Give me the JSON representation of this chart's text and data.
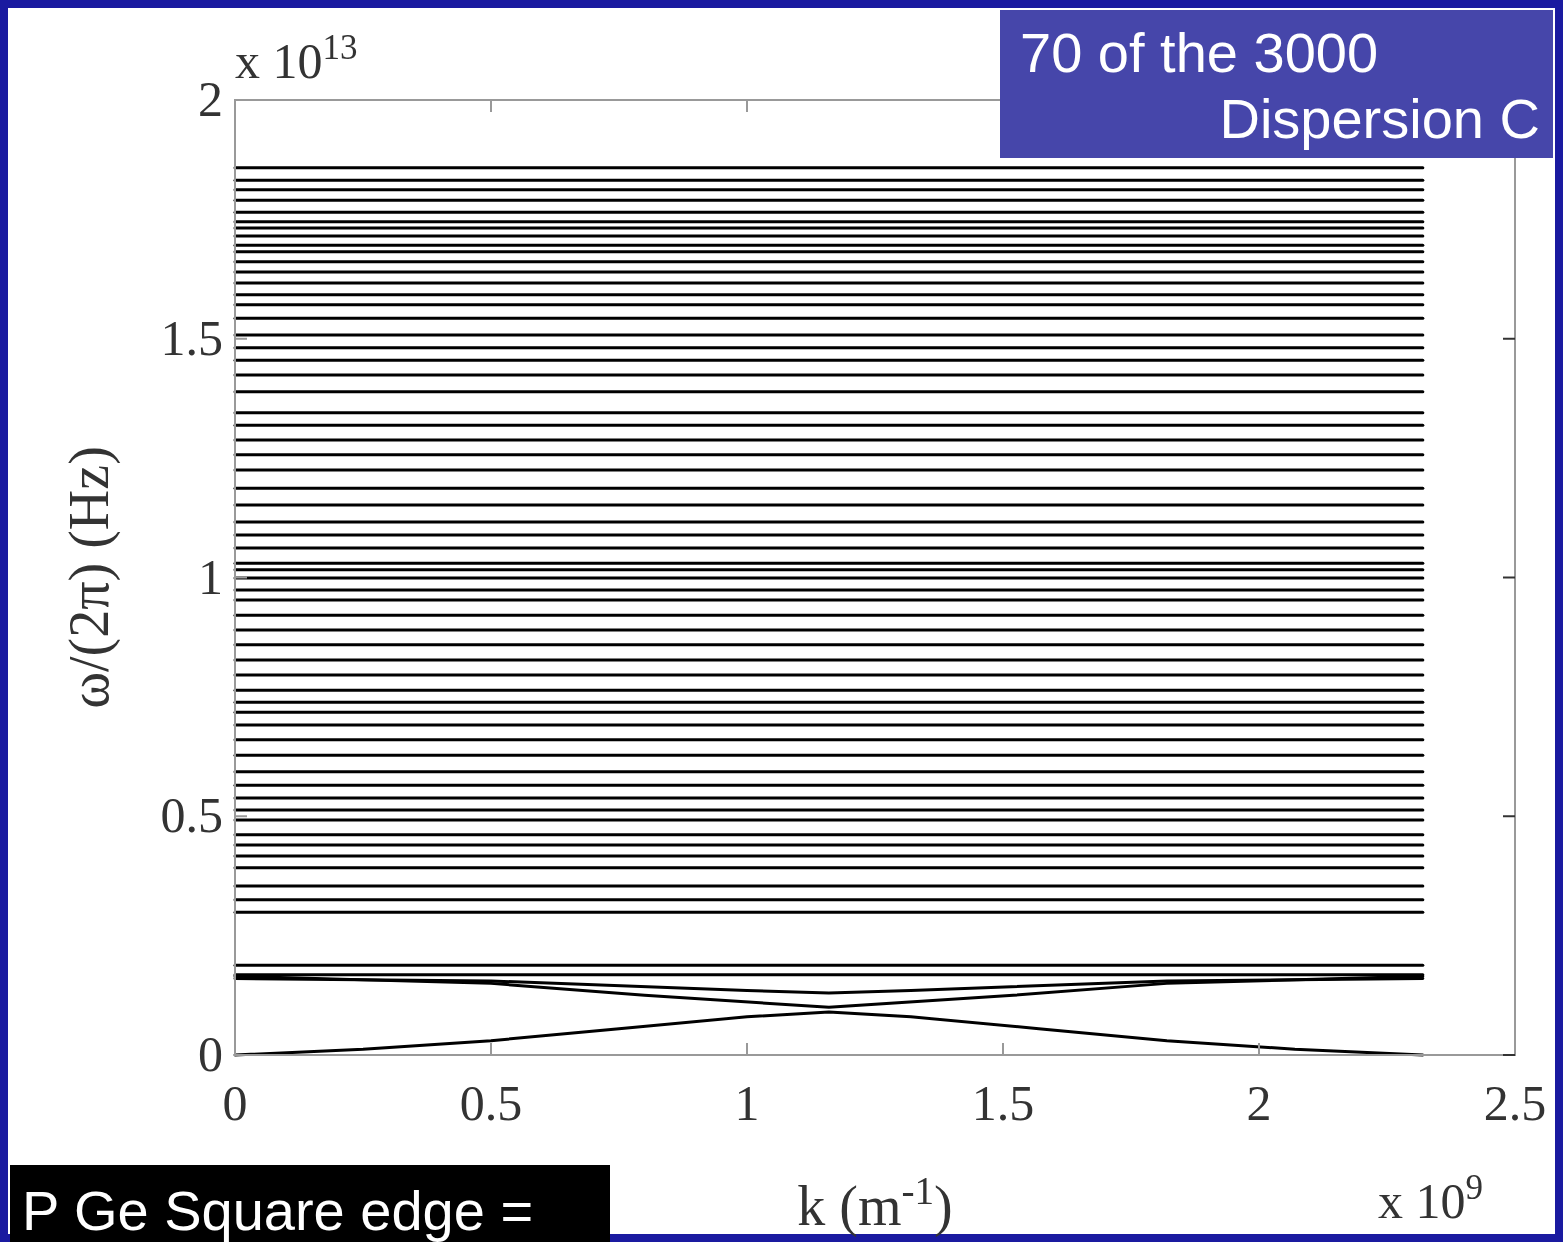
{
  "chart_data": {
    "type": "line",
    "xlabel": "k (m$^{-1}$)",
    "ylabel": "ω/(2π) (Hz)",
    "annotations": [
      "x 10$^{13}$",
      "x 10$^{9}$",
      "70 of the 3000 Dispersion C",
      "P Ge Square edge ="
    ],
    "xlim": [
      0,
      2.5
    ],
    "ylim": [
      0,
      2
    ],
    "xticks": [
      0,
      0.5,
      1,
      1.5,
      2,
      2.5
    ],
    "yticks": [
      0,
      0.5,
      1,
      1.5,
      2
    ],
    "grid": false,
    "marker": "none",
    "line_style": "solid",
    "series": [
      {
        "color": "#000000",
        "x": [
          0,
          0.25,
          0.5,
          0.75,
          1,
          1.16,
          1.32,
          1.57,
          1.82,
          2.07,
          2.32
        ],
        "values": [
          0,
          0.012,
          0.03,
          0.055,
          0.08,
          0.09,
          0.08,
          0.055,
          0.03,
          0.012,
          0
        ]
      },
      {
        "color": "#000000",
        "x": [
          0,
          0.5,
          0.8,
          1.16,
          1.52,
          1.82,
          2.32
        ],
        "values": [
          0.165,
          0.15,
          0.125,
          0.1,
          0.125,
          0.15,
          0.165
        ]
      },
      {
        "color": "#000000",
        "x": [
          0,
          0.5,
          1,
          1.16,
          1.32,
          1.82,
          2.32
        ],
        "values": [
          0.16,
          0.155,
          0.135,
          0.13,
          0.135,
          0.155,
          0.16
        ]
      },
      {
        "color": "#000000",
        "x": [
          0,
          2.32
        ],
        "values": [
          0.168,
          0.168
        ]
      },
      {
        "color": "#000000",
        "x": [
          0,
          2.32
        ],
        "values": [
          0.188,
          0.188
        ]
      },
      {
        "color": "#000000",
        "x": [
          0,
          2.32
        ],
        "values": [
          0.299,
          0.299
        ]
      },
      {
        "color": "#000000",
        "x": [
          0,
          2.32
        ],
        "values": [
          0.325,
          0.325
        ]
      },
      {
        "color": "#000000",
        "x": [
          0,
          2.32
        ],
        "values": [
          0.354,
          0.354
        ]
      },
      {
        "color": "#000000",
        "x": [
          0,
          2.32
        ],
        "values": [
          0.392,
          0.392
        ]
      },
      {
        "color": "#000000",
        "x": [
          0,
          2.32
        ],
        "values": [
          0.417,
          0.417
        ]
      },
      {
        "color": "#000000",
        "x": [
          0,
          2.32
        ],
        "values": [
          0.44,
          0.44
        ]
      },
      {
        "color": "#000000",
        "x": [
          0,
          2.32
        ],
        "values": [
          0.461,
          0.461
        ]
      },
      {
        "color": "#000000",
        "x": [
          0,
          2.32
        ],
        "values": [
          0.492,
          0.492
        ]
      },
      {
        "color": "#000000",
        "x": [
          0,
          2.32
        ],
        "values": [
          0.513,
          0.513
        ]
      },
      {
        "color": "#000000",
        "x": [
          0,
          2.32
        ],
        "values": [
          0.538,
          0.538
        ]
      },
      {
        "color": "#000000",
        "x": [
          0,
          2.32
        ],
        "values": [
          0.565,
          0.565
        ]
      },
      {
        "color": "#000000",
        "x": [
          0,
          2.32
        ],
        "values": [
          0.593,
          0.593
        ]
      },
      {
        "color": "#000000",
        "x": [
          0,
          2.32
        ],
        "values": [
          0.628,
          0.628
        ]
      },
      {
        "color": "#000000",
        "x": [
          0,
          2.32
        ],
        "values": [
          0.66,
          0.66
        ]
      },
      {
        "color": "#000000",
        "x": [
          0,
          2.32
        ],
        "values": [
          0.691,
          0.691
        ]
      },
      {
        "color": "#000000",
        "x": [
          0,
          2.32
        ],
        "values": [
          0.718,
          0.718
        ]
      },
      {
        "color": "#000000",
        "x": [
          0,
          2.32
        ],
        "values": [
          0.739,
          0.739
        ]
      },
      {
        "color": "#000000",
        "x": [
          0,
          2.32
        ],
        "values": [
          0.764,
          0.764
        ]
      },
      {
        "color": "#000000",
        "x": [
          0,
          2.32
        ],
        "values": [
          0.796,
          0.796
        ]
      },
      {
        "color": "#000000",
        "x": [
          0,
          2.32
        ],
        "values": [
          0.827,
          0.827
        ]
      },
      {
        "color": "#000000",
        "x": [
          0,
          2.32
        ],
        "values": [
          0.859,
          0.859
        ]
      },
      {
        "color": "#000000",
        "x": [
          0,
          2.32
        ],
        "values": [
          0.89,
          0.89
        ]
      },
      {
        "color": "#000000",
        "x": [
          0,
          2.32
        ],
        "values": [
          0.921,
          0.921
        ]
      },
      {
        "color": "#000000",
        "x": [
          0,
          2.32
        ],
        "values": [
          0.953,
          0.953
        ]
      },
      {
        "color": "#000000",
        "x": [
          0,
          2.32
        ],
        "values": [
          0.974,
          0.974
        ]
      },
      {
        "color": "#000000",
        "x": [
          0,
          2.32
        ],
        "values": [
          0.999,
          0.999
        ]
      },
      {
        "color": "#000000",
        "x": [
          0,
          2.32
        ],
        "values": [
          1.016,
          1.016
        ]
      },
      {
        "color": "#000000",
        "x": [
          0,
          2.32
        ],
        "values": [
          1.03,
          1.03
        ]
      },
      {
        "color": "#000000",
        "x": [
          0,
          2.32
        ],
        "values": [
          1.062,
          1.062
        ]
      },
      {
        "color": "#000000",
        "x": [
          0,
          2.32
        ],
        "values": [
          1.089,
          1.089
        ]
      },
      {
        "color": "#000000",
        "x": [
          0,
          2.32
        ],
        "values": [
          1.116,
          1.116
        ]
      },
      {
        "color": "#000000",
        "x": [
          0,
          2.32
        ],
        "values": [
          1.152,
          1.152
        ]
      },
      {
        "color": "#000000",
        "x": [
          0,
          2.32
        ],
        "values": [
          1.187,
          1.187
        ]
      },
      {
        "color": "#000000",
        "x": [
          0,
          2.32
        ],
        "values": [
          1.225,
          1.225
        ]
      },
      {
        "color": "#000000",
        "x": [
          0,
          2.32
        ],
        "values": [
          1.257,
          1.257
        ]
      },
      {
        "color": "#000000",
        "x": [
          0,
          2.32
        ],
        "values": [
          1.288,
          1.288
        ]
      },
      {
        "color": "#000000",
        "x": [
          0,
          2.32
        ],
        "values": [
          1.319,
          1.319
        ]
      },
      {
        "color": "#000000",
        "x": [
          0,
          2.32
        ],
        "values": [
          1.345,
          1.345
        ]
      },
      {
        "color": "#000000",
        "x": [
          0,
          2.32
        ],
        "values": [
          1.389,
          1.389
        ]
      },
      {
        "color": "#000000",
        "x": [
          0,
          2.32
        ],
        "values": [
          1.424,
          1.424
        ]
      },
      {
        "color": "#000000",
        "x": [
          0,
          2.32
        ],
        "values": [
          1.455,
          1.455
        ]
      },
      {
        "color": "#000000",
        "x": [
          0,
          2.32
        ],
        "values": [
          1.481,
          1.481
        ]
      },
      {
        "color": "#000000",
        "x": [
          0,
          2.32
        ],
        "values": [
          1.508,
          1.508
        ]
      },
      {
        "color": "#000000",
        "x": [
          0,
          2.32
        ],
        "values": [
          1.543,
          1.543
        ]
      },
      {
        "color": "#000000",
        "x": [
          0,
          2.32
        ],
        "values": [
          1.571,
          1.571
        ]
      },
      {
        "color": "#000000",
        "x": [
          0,
          2.32
        ],
        "values": [
          1.592,
          1.592
        ]
      },
      {
        "color": "#000000",
        "x": [
          0,
          2.32
        ],
        "values": [
          1.617,
          1.617
        ]
      },
      {
        "color": "#000000",
        "x": [
          0,
          2.32
        ],
        "values": [
          1.64,
          1.64
        ]
      },
      {
        "color": "#000000",
        "x": [
          0,
          2.32
        ],
        "values": [
          1.661,
          1.661
        ]
      },
      {
        "color": "#000000",
        "x": [
          0,
          2.32
        ],
        "values": [
          1.682,
          1.682
        ]
      },
      {
        "color": "#000000",
        "x": [
          0,
          2.32
        ],
        "values": [
          1.696,
          1.696
        ]
      },
      {
        "color": "#000000",
        "x": [
          0,
          2.32
        ],
        "values": [
          1.715,
          1.715
        ]
      },
      {
        "color": "#000000",
        "x": [
          0,
          2.32
        ],
        "values": [
          1.732,
          1.732
        ]
      },
      {
        "color": "#000000",
        "x": [
          0,
          2.32
        ],
        "values": [
          1.745,
          1.745
        ]
      },
      {
        "color": "#000000",
        "x": [
          0,
          2.32
        ],
        "values": [
          1.765,
          1.765
        ]
      },
      {
        "color": "#000000",
        "x": [
          0,
          2.32
        ],
        "values": [
          1.79,
          1.79
        ]
      },
      {
        "color": "#000000",
        "x": [
          0,
          2.32
        ],
        "values": [
          1.812,
          1.812
        ]
      },
      {
        "color": "#000000",
        "x": [
          0,
          2.32
        ],
        "values": [
          1.832,
          1.832
        ]
      },
      {
        "color": "#000000",
        "x": [
          0,
          2.32
        ],
        "values": [
          1.858,
          1.858
        ]
      }
    ]
  }
}
